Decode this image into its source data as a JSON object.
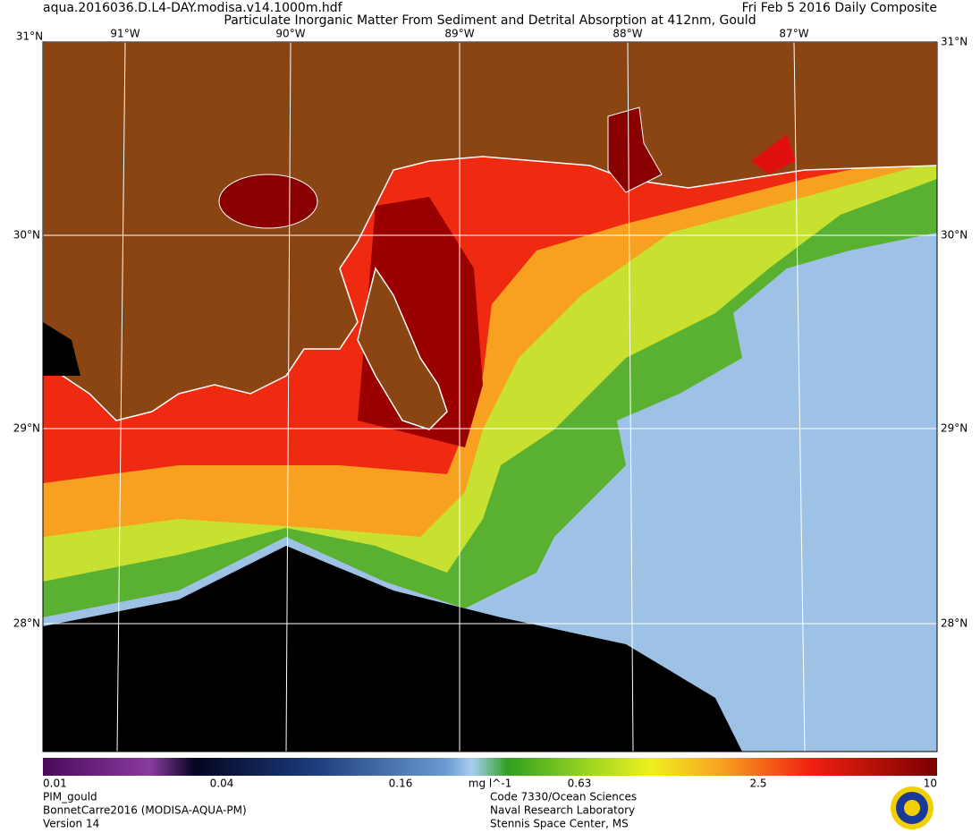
{
  "header": {
    "file": "aqua.2016036.D.L4-DAY.modisa.v14.1000m.hdf",
    "title": "Particulate Inorganic Matter From Sediment and Detrital Absorption at 412nm, Gould",
    "date": "Fri Feb  5 2016 Daily Composite"
  },
  "map": {
    "lat_labels": [
      "31°N",
      "30°N",
      "29°N",
      "28°N"
    ],
    "lon_labels": [
      "91°W",
      "90°W",
      "89°W",
      "88°W",
      "87°W"
    ]
  },
  "colorbar": {
    "ticks": [
      "0.01",
      "0.04",
      "0.16",
      "0.63",
      "2.5",
      "10"
    ],
    "unit": "mg l^-1"
  },
  "footer": {
    "left": [
      "PIM_gould",
      "BonnetCarre2016 (MODISA-AQUA-PM)",
      "Version 14"
    ],
    "center": [
      "Code 7330/Ocean Sciences",
      "Naval Research Laboratory",
      "Stennis Space Center, MS"
    ]
  }
}
